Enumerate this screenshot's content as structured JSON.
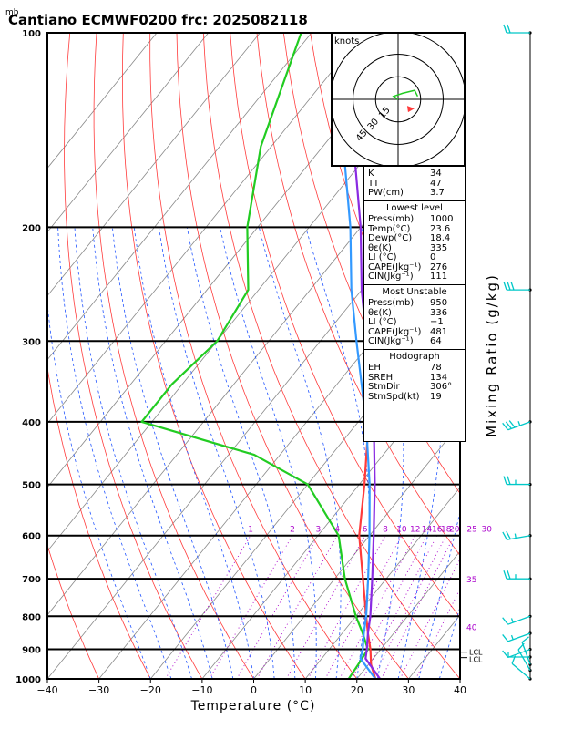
{
  "header": {
    "unit_label": "mb",
    "title": "Cantiano ECMWF0200  frc: 2025082118"
  },
  "axes": {
    "xlabel": "Temperature (°C)",
    "ylabel_right": "Mixing Ratio (g/kg)",
    "x_ticks": [
      "−40",
      "−30",
      "−20",
      "−10",
      "0",
      "10",
      "20",
      "30",
      "40"
    ],
    "p_ticks": [
      "100",
      "200",
      "300",
      "400",
      "500",
      "600",
      "700",
      "800",
      "900",
      "1000"
    ],
    "lcl_label": "LCL",
    "lcl_label2": "LCL"
  },
  "mixing_ratio_labels": [
    "1",
    "2",
    "3",
    "4",
    "6",
    "8",
    "10",
    "12",
    "14",
    "16",
    "18",
    "20",
    "25",
    "30"
  ],
  "theta_e_labels": [
    "35",
    "40"
  ],
  "hodograph": {
    "title": "knots",
    "rings": [
      "15",
      "30",
      "45"
    ]
  },
  "indices": {
    "k_label": "K",
    "k_value": "34",
    "tt_label": "TT",
    "tt_value": "47",
    "pw_label": "PW(cm)",
    "pw_value": "3.7",
    "lowest_title": "Lowest level",
    "lowest": [
      {
        "label": "Press(mb)",
        "value": "1000"
      },
      {
        "label": "Temp(°C)",
        "value": "23.6"
      },
      {
        "label": "Dewp(°C)",
        "value": "18.4"
      },
      {
        "label": "θε(K)",
        "value": "335"
      },
      {
        "label": "LI (°C)",
        "value": "0"
      },
      {
        "label": "CAPE(Jkg⁻¹)",
        "value": "276"
      },
      {
        "label": "CIN(Jkg⁻¹)",
        "value": "111"
      }
    ],
    "mu_title": "Most Unstable",
    "most_unstable": [
      {
        "label": "Press(mb)",
        "value": "950"
      },
      {
        "label": "θε(K)",
        "value": "336"
      },
      {
        "label": "LI (°C)",
        "value": "−1"
      },
      {
        "label": "CAPE(Jkg⁻¹)",
        "value": "481"
      },
      {
        "label": "CIN(Jkg⁻¹)",
        "value": "64"
      }
    ],
    "hodo_title": "Hodograph",
    "hodo": [
      {
        "label": "EH",
        "value": "78"
      },
      {
        "label": "SREH",
        "value": "134"
      },
      {
        "label": "StmDir",
        "value": "306°"
      },
      {
        "label": "StmSpd(kt)",
        "value": "19"
      }
    ]
  },
  "colors": {
    "temperature": "#ff3b3b",
    "dewpoint": "#22cc22",
    "parcel": "#3399ff",
    "virtual_parcel": "#8a2be2",
    "isotherm": "#888888",
    "dry_adiabat": "#ff3b3b",
    "moist_adiabat": "#2255ff",
    "mixing_ratio": "#aa00cc",
    "wind_barb": "#00c8c8"
  },
  "chart_data": {
    "type": "line",
    "title": "Cantiano ECMWF0200  frc: 2025082118",
    "xlabel": "Temperature (°C)",
    "ylabel": "mb",
    "xlim": [
      -40,
      40
    ],
    "plim": [
      1000,
      100
    ],
    "series": [
      {
        "role": "temperature",
        "points": [
          [
            1000,
            23.6
          ],
          [
            950,
            20.5
          ],
          [
            900,
            18.0
          ],
          [
            850,
            15.0
          ],
          [
            800,
            12.0
          ],
          [
            700,
            5.5
          ],
          [
            600,
            -2.0
          ],
          [
            500,
            -9.0
          ],
          [
            400,
            -18.0
          ],
          [
            300,
            -31.0
          ],
          [
            250,
            -39.0
          ],
          [
            200,
            -37.0
          ],
          [
            150,
            -32.0
          ],
          [
            100,
            -26.0
          ]
        ]
      },
      {
        "role": "dewpoint",
        "points": [
          [
            1000,
            18.4
          ],
          [
            950,
            18.0
          ],
          [
            900,
            17.5
          ],
          [
            850,
            14.0
          ],
          [
            800,
            10.0
          ],
          [
            700,
            2.0
          ],
          [
            600,
            -6.0
          ],
          [
            500,
            -20.0
          ],
          [
            450,
            -35.0
          ],
          [
            400,
            -62.0
          ],
          [
            350,
            -62.0
          ],
          [
            300,
            -60.0
          ],
          [
            250,
            -62.0
          ],
          [
            200,
            -72.0
          ],
          [
            150,
            -82.0
          ],
          [
            100,
            -92.0
          ]
        ]
      },
      {
        "role": "parcel",
        "points": [
          [
            1000,
            23.6
          ],
          [
            930,
            17.5
          ],
          [
            900,
            16.5
          ],
          [
            850,
            14.2
          ],
          [
            800,
            12.0
          ],
          [
            700,
            6.5
          ],
          [
            600,
            0.0
          ],
          [
            500,
            -8.0
          ],
          [
            400,
            -18.5
          ],
          [
            300,
            -33.0
          ],
          [
            250,
            -42.0
          ],
          [
            200,
            -52.0
          ],
          [
            150,
            -66.0
          ],
          [
            120,
            -76.0
          ]
        ]
      },
      {
        "role": "virtual_parcel",
        "points": [
          [
            1000,
            24.5
          ],
          [
            930,
            18.5
          ],
          [
            900,
            17.3
          ],
          [
            850,
            15.0
          ],
          [
            800,
            12.8
          ],
          [
            700,
            7.3
          ],
          [
            600,
            0.8
          ],
          [
            500,
            -7.0
          ],
          [
            400,
            -17.0
          ],
          [
            300,
            -31.0
          ],
          [
            250,
            -40.0
          ],
          [
            200,
            -50.0
          ],
          [
            150,
            -64.0
          ],
          [
            120,
            -74.0
          ]
        ]
      }
    ],
    "wind_barbs": [
      {
        "p": 1000,
        "dir": 310,
        "spd": 10
      },
      {
        "p": 970,
        "dir": 330,
        "spd": 10
      },
      {
        "p": 950,
        "dir": 340,
        "spd": 10
      },
      {
        "p": 925,
        "dir": 270,
        "spd": 5
      },
      {
        "p": 900,
        "dir": 250,
        "spd": 10
      },
      {
        "p": 850,
        "dir": 250,
        "spd": 15
      },
      {
        "p": 800,
        "dir": 250,
        "spd": 15
      },
      {
        "p": 700,
        "dir": 270,
        "spd": 25
      },
      {
        "p": 600,
        "dir": 260,
        "spd": 25
      },
      {
        "p": 500,
        "dir": 270,
        "spd": 25
      },
      {
        "p": 400,
        "dir": 250,
        "spd": 35
      },
      {
        "p": 250,
        "dir": 270,
        "spd": 30
      },
      {
        "p": 100,
        "dir": 270,
        "spd": 20
      }
    ],
    "hodograph_points_kt": [
      [
        0,
        0
      ],
      [
        -3,
        2
      ],
      [
        3,
        4
      ],
      [
        11,
        6
      ],
      [
        13,
        2
      ]
    ],
    "storm_motion": {
      "dir": 306,
      "spd": 19
    }
  }
}
